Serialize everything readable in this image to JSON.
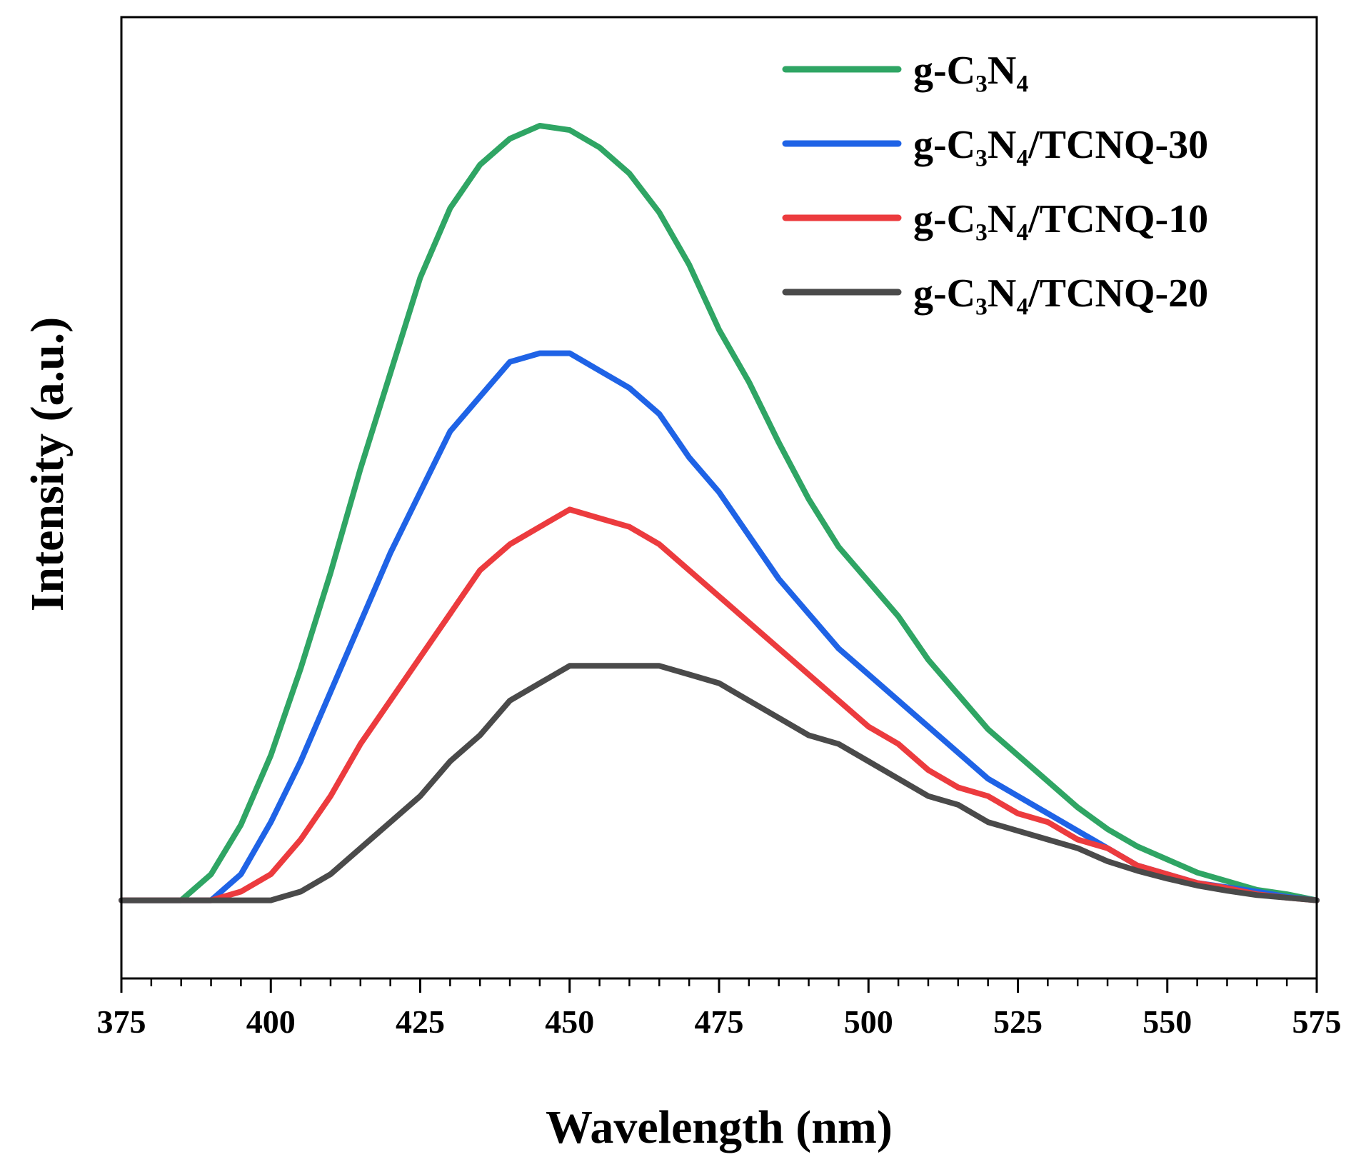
{
  "chart_data": {
    "type": "line",
    "xlabel": "Wavelength (nm)",
    "ylabel": "Intensity (a.u.)",
    "x": [
      375,
      380,
      385,
      390,
      395,
      400,
      405,
      410,
      415,
      420,
      425,
      430,
      435,
      440,
      445,
      450,
      455,
      460,
      465,
      470,
      475,
      480,
      485,
      490,
      495,
      500,
      505,
      510,
      515,
      520,
      525,
      530,
      535,
      540,
      545,
      550,
      555,
      560,
      565,
      570,
      575
    ],
    "series": [
      {
        "name": "g-C₃N₄",
        "color": "#2fa564",
        "values": [
          0,
          0,
          0,
          3,
          8.7,
          16.7,
          26.7,
          37.7,
          49.7,
          60.7,
          71.7,
          79.7,
          84.7,
          87.7,
          89.2,
          88.7,
          86.7,
          83.7,
          79.2,
          73.2,
          65.7,
          59.7,
          52.7,
          46.2,
          40.7,
          36.7,
          32.7,
          27.7,
          23.7,
          19.7,
          16.7,
          13.7,
          10.7,
          8.2,
          6.2,
          4.7,
          3.2,
          2.2,
          1.2,
          0.7,
          0
        ]
      },
      {
        "name": "g-C₃N₄/TCNQ-30",
        "color": "#1f63e6",
        "values": [
          0,
          0,
          0,
          0,
          3,
          9,
          16,
          24,
          32,
          40,
          47,
          54,
          58,
          62,
          63,
          63,
          61,
          59,
          56,
          51,
          47,
          42,
          37,
          33,
          29,
          26,
          23,
          20,
          17,
          14,
          12,
          10,
          8,
          6,
          4,
          3,
          2,
          1.5,
          1,
          0.4,
          0
        ]
      },
      {
        "name": "g-C₃N₄/TCNQ-10",
        "color": "#ec3b3e",
        "values": [
          0,
          0,
          0,
          0,
          1,
          3,
          7,
          12,
          18,
          23,
          28,
          33,
          38,
          41,
          43,
          45,
          44,
          43,
          41,
          38,
          35,
          32,
          29,
          26,
          23,
          20,
          18,
          15,
          13,
          12,
          10,
          9,
          7,
          6,
          4,
          3,
          2,
          1.4,
          0.7,
          0.3,
          0
        ]
      },
      {
        "name": "g-C₃N₄/TCNQ-20",
        "color": "#4a4a4a",
        "values": [
          0,
          0,
          0,
          0,
          0,
          0,
          1,
          3,
          6,
          9,
          12,
          16,
          19,
          23,
          25,
          27,
          27,
          27,
          27,
          26,
          25,
          23,
          21,
          19,
          18,
          16,
          14,
          12,
          11,
          9,
          8,
          7,
          6,
          4.5,
          3.4,
          2.5,
          1.7,
          1.1,
          0.6,
          0.3,
          0
        ]
      }
    ],
    "xlim": [
      375,
      575
    ],
    "xticks": [
      375,
      400,
      425,
      450,
      475,
      500,
      525,
      550,
      575
    ],
    "xticks_minor": [
      380,
      385,
      390,
      395,
      405,
      410,
      415,
      420,
      430,
      435,
      440,
      445,
      455,
      460,
      465,
      470,
      480,
      485,
      490,
      495,
      505,
      510,
      515,
      520,
      530,
      535,
      540,
      545,
      555,
      560,
      565,
      570
    ],
    "ylim": [
      -9,
      101.7
    ],
    "legend": "upper right"
  }
}
